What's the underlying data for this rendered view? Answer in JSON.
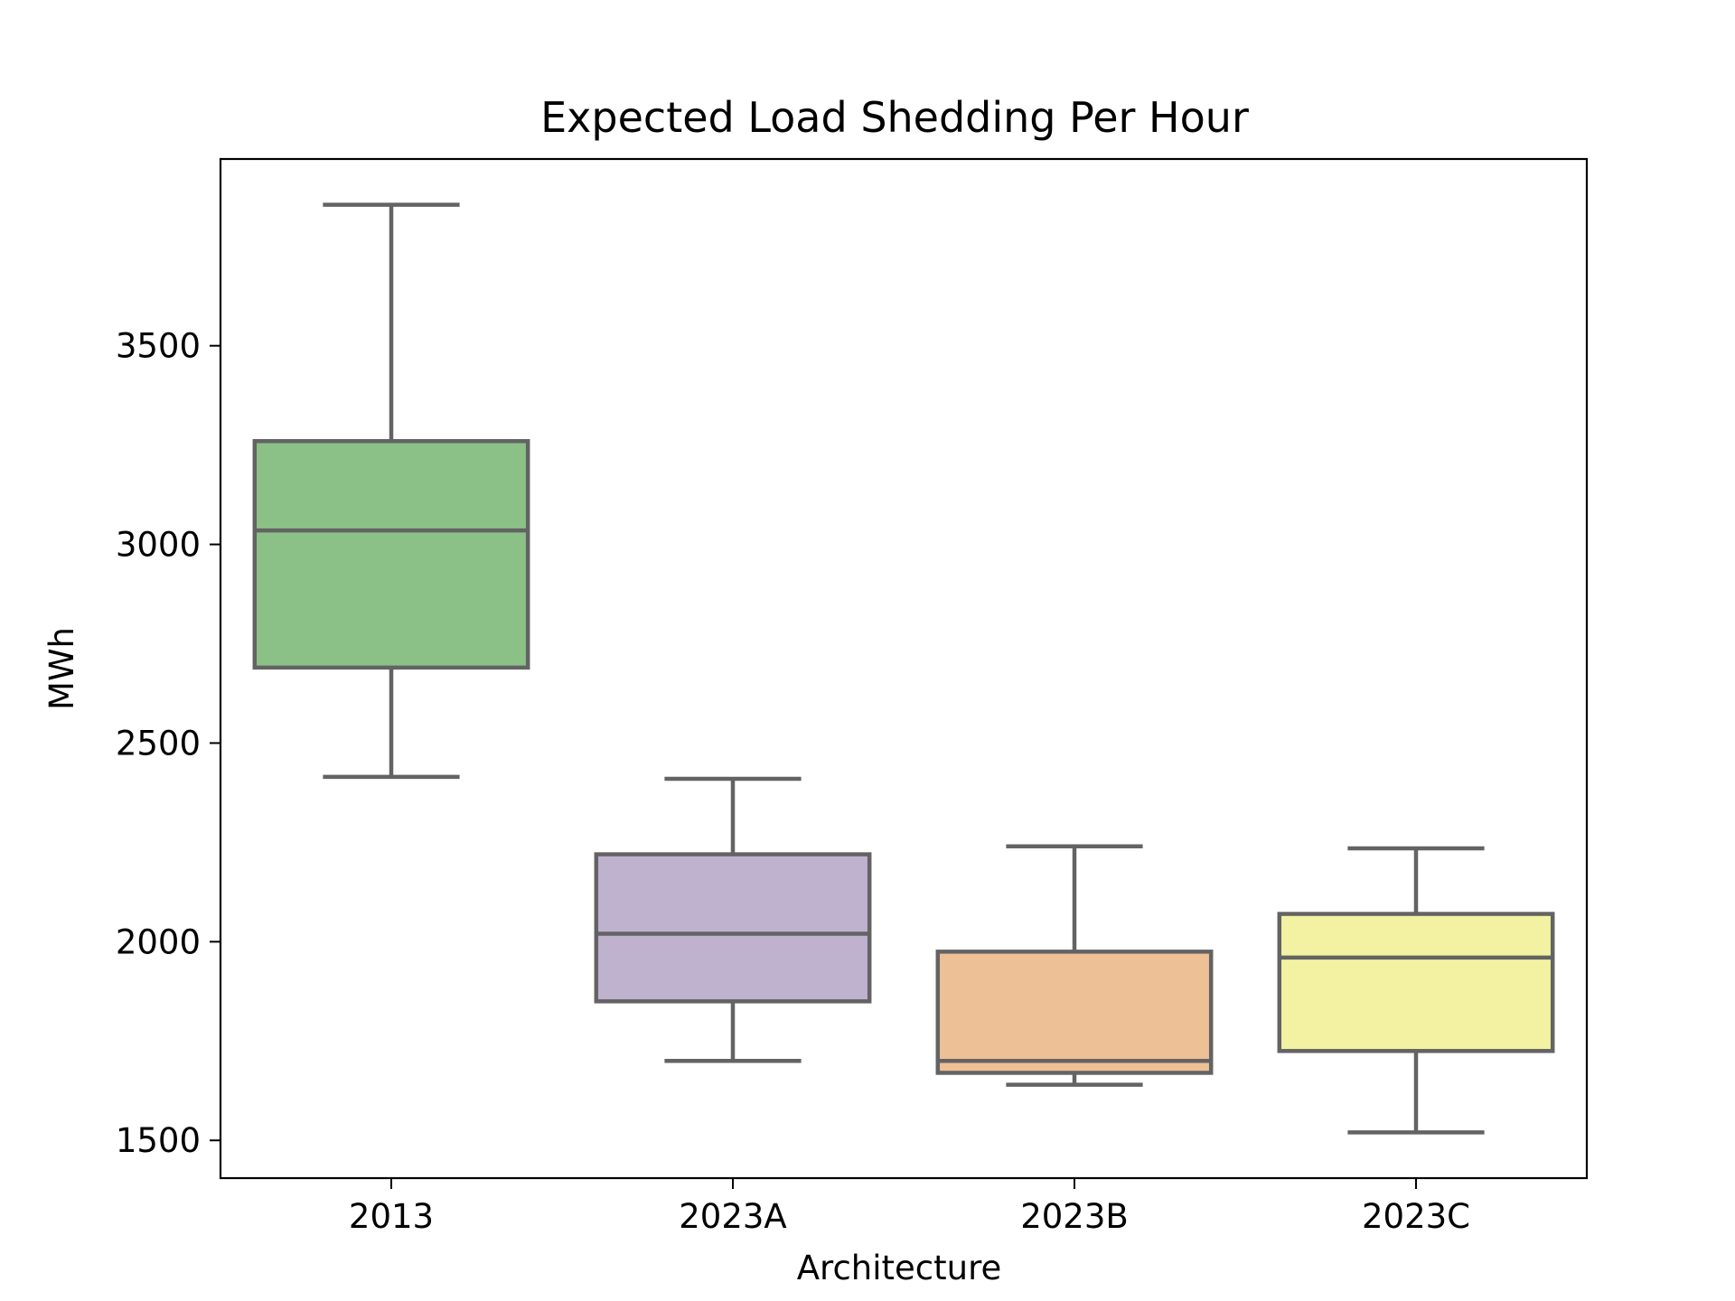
{
  "chart_data": {
    "type": "box",
    "title": "Expected Load Shedding Per Hour",
    "xlabel": "Architecture",
    "ylabel": "MWh",
    "ylim": [
      1405,
      3970
    ],
    "yticks": [
      1500,
      2000,
      2500,
      3000,
      3500
    ],
    "grid": false,
    "categories": [
      "2013",
      "2023A",
      "2023B",
      "2023C"
    ],
    "boxes": [
      {
        "category": "2013",
        "whisker_low": 2415,
        "q1": 2690,
        "median": 3035,
        "q3": 3260,
        "whisker_high": 3855,
        "color": "#8bc187"
      },
      {
        "category": "2023A",
        "whisker_low": 1700,
        "q1": 1850,
        "median": 2020,
        "q3": 2220,
        "whisker_high": 2410,
        "color": "#bfb2cf"
      },
      {
        "category": "2023B",
        "whisker_low": 1640,
        "q1": 1670,
        "median": 1700,
        "q3": 1975,
        "whisker_high": 2240,
        "color": "#eec096"
      },
      {
        "category": "2023C",
        "whisker_low": 1520,
        "q1": 1725,
        "median": 1960,
        "q3": 2070,
        "whisker_high": 2235,
        "color": "#f2f2a2"
      }
    ],
    "line_color": "#636363"
  }
}
